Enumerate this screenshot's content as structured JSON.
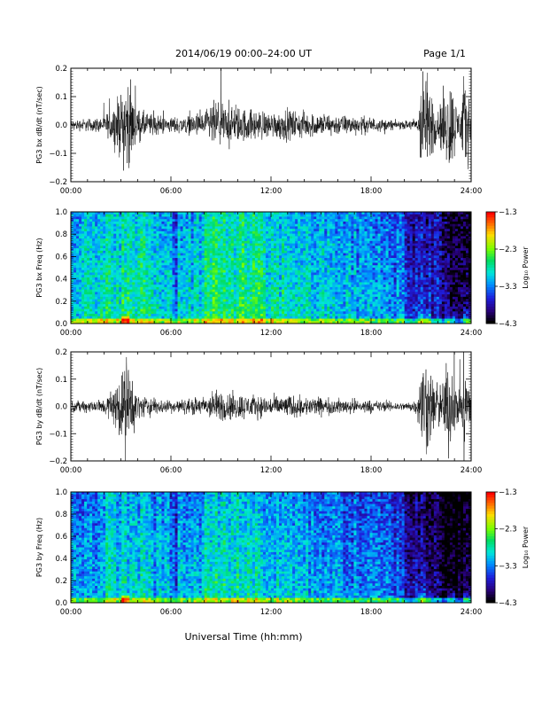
{
  "header": {
    "title": "2014/06/19  00:00–24:00 UT",
    "page": "Page 1/1"
  },
  "xlabel": "Universal Time (hh:mm)",
  "chart_data": [
    {
      "type": "line",
      "ylabel": "PG3 bx dB/dt (nT/sec)",
      "xlim": [
        0,
        24
      ],
      "ylim": [
        -0.2,
        0.2
      ],
      "x_ticks": [
        "00:00",
        "06:00",
        "12:00",
        "18:00",
        "24:00"
      ],
      "y_ticks": [
        "0.2",
        "0.1",
        "0.0",
        "−0.1",
        "−0.2"
      ],
      "series": [
        {
          "x": [
            0,
            1,
            2,
            3,
            3.3,
            3.6,
            4,
            5,
            6,
            7,
            8,
            8.5,
            9,
            9.5,
            10,
            11,
            12,
            13,
            14,
            15,
            16,
            17,
            18,
            19,
            20,
            20.8,
            21,
            21.3,
            21.7,
            22,
            22.4,
            22.7,
            23,
            23.3,
            23.6,
            24
          ],
          "y_amplitude": [
            0.02,
            0.025,
            0.03,
            0.12,
            0.2,
            0.14,
            0.06,
            0.04,
            0.03,
            0.035,
            0.05,
            0.09,
            0.085,
            0.07,
            0.07,
            0.06,
            0.05,
            0.06,
            0.05,
            0.045,
            0.04,
            0.035,
            0.03,
            0.02,
            0.015,
            0.03,
            0.2,
            0.2,
            0.12,
            0.06,
            0.14,
            0.2,
            0.12,
            0.06,
            0.2,
            0.08
          ]
        }
      ]
    },
    {
      "type": "heatmap",
      "ylabel": "PG3 bx Freq (Hz)",
      "xlim": [
        0,
        24
      ],
      "ylim": [
        0,
        1
      ],
      "x_ticks": [
        "00:00",
        "06:00",
        "12:00",
        "18:00",
        "24:00"
      ],
      "y_ticks": [
        "1.0",
        "0.8",
        "0.6",
        "0.4",
        "0.2",
        "0.0"
      ],
      "colorbar": {
        "label": "Log₁₀ Power",
        "ticks": [
          "−1.3",
          "−2.3",
          "−3.3",
          "−4.3"
        ],
        "range": [
          -4.3,
          -1.3
        ]
      }
    },
    {
      "type": "line",
      "ylabel": "PG3 by dB/dt (nT/sec)",
      "xlim": [
        0,
        24
      ],
      "ylim": [
        -0.2,
        0.2
      ],
      "x_ticks": [
        "00:00",
        "06:00",
        "12:00",
        "18:00",
        "24:00"
      ],
      "y_ticks": [
        "0.2",
        "0.1",
        "0.0",
        "−0.1",
        "−0.2"
      ],
      "series": [
        {
          "x": [
            0,
            1,
            2,
            3,
            3.3,
            3.6,
            4,
            5,
            6,
            7,
            8,
            8.5,
            9,
            9.5,
            10,
            11,
            12,
            13,
            14,
            15,
            16,
            17,
            18,
            19,
            20,
            20.8,
            21,
            21.3,
            21.7,
            22,
            22.4,
            22.7,
            23,
            23.3,
            23.6,
            24
          ],
          "y_amplitude": [
            0.02,
            0.025,
            0.03,
            0.12,
            0.2,
            0.14,
            0.05,
            0.035,
            0.025,
            0.03,
            0.04,
            0.06,
            0.065,
            0.055,
            0.055,
            0.045,
            0.04,
            0.045,
            0.04,
            0.035,
            0.03,
            0.03,
            0.025,
            0.02,
            0.015,
            0.03,
            0.2,
            0.2,
            0.12,
            0.06,
            0.14,
            0.2,
            0.12,
            0.06,
            0.2,
            0.07
          ]
        }
      ]
    },
    {
      "type": "heatmap",
      "ylabel": "PG3 by Freq (Hz)",
      "xlim": [
        0,
        24
      ],
      "ylim": [
        0,
        1
      ],
      "x_ticks": [
        "00:00",
        "06:00",
        "12:00",
        "18:00",
        "24:00"
      ],
      "y_ticks": [
        "1.0",
        "0.8",
        "0.6",
        "0.4",
        "0.2",
        "0.0"
      ],
      "colorbar": {
        "label": "Log₁₀ Power",
        "ticks": [
          "−1.3",
          "−2.3",
          "−3.3",
          "−4.3"
        ],
        "range": [
          -4.3,
          -1.3
        ]
      }
    }
  ]
}
